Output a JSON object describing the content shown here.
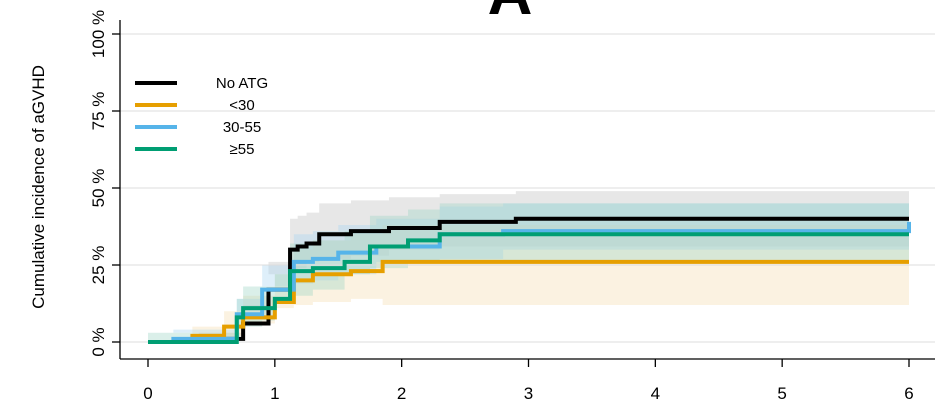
{
  "chart_data": {
    "type": "line",
    "panel_label": "A",
    "xlabel": "",
    "ylabel": "Cumulative incidence of aGVHD",
    "xlim": [
      0,
      6
    ],
    "ylim": [
      0,
      100
    ],
    "x_ticks": [
      "0",
      "1",
      "2",
      "3",
      "4",
      "5",
      "6"
    ],
    "y_ticks": [
      "0 %",
      "25 %",
      "50 %",
      "75 %",
      "100 %"
    ],
    "grid": "horizontal",
    "legend_position": "top-left",
    "series": [
      {
        "name": "No ATG",
        "color": "#000000",
        "band_color": "#bfbfbf",
        "x": [
          0,
          0.4,
          0.7,
          0.75,
          0.95,
          1.12,
          1.18,
          1.25,
          1.35,
          1.6,
          1.9,
          2.3,
          2.9,
          6
        ],
        "y": [
          0,
          1,
          1,
          6,
          17,
          30,
          31,
          32,
          35,
          36,
          37,
          39,
          40,
          40
        ],
        "lower": [
          0,
          0,
          0,
          2,
          10,
          22,
          23,
          24,
          26,
          27,
          28,
          30,
          31,
          31
        ],
        "upper": [
          0,
          3,
          3,
          12,
          26,
          40,
          41,
          42,
          45,
          46,
          47,
          48,
          49,
          49
        ]
      },
      {
        "name": "<30",
        "color": "#E69F00",
        "band_color": "#f5dcb0",
        "x": [
          0,
          0.35,
          0.6,
          0.75,
          1.0,
          1.15,
          1.3,
          1.6,
          1.85,
          6
        ],
        "y": [
          0,
          2,
          5,
          8,
          13,
          20,
          22,
          23,
          26,
          26
        ],
        "lower": [
          0,
          0,
          1,
          2,
          6,
          11,
          12,
          13,
          14,
          12
        ],
        "upper": [
          0,
          5,
          10,
          15,
          22,
          30,
          33,
          35,
          38,
          38
        ]
      },
      {
        "name": "30-55",
        "color": "#56B4E9",
        "band_color": "#a7d6f1",
        "x": [
          0,
          0.2,
          0.7,
          0.9,
          1.15,
          1.3,
          1.5,
          1.8,
          2.3,
          2.8,
          6
        ],
        "y": [
          0,
          1,
          9,
          17,
          26,
          27,
          29,
          31,
          35,
          36,
          39
        ],
        "lower": [
          0,
          0,
          4,
          10,
          18,
          19,
          20,
          22,
          26,
          27,
          30
        ],
        "upper": [
          0,
          3,
          14,
          25,
          35,
          36,
          38,
          40,
          44,
          45,
          48
        ]
      },
      {
        "name": "≥55",
        "color": "#009E73",
        "band_color": "#9fd5c5",
        "x": [
          0,
          0.7,
          0.75,
          0.9,
          1.0,
          1.12,
          1.3,
          1.55,
          1.75,
          2.05,
          2.3,
          6
        ],
        "y": [
          0,
          8,
          11,
          11,
          14,
          23,
          24,
          26,
          31,
          33,
          35,
          35
        ],
        "lower": [
          0,
          3,
          5,
          5,
          7,
          14,
          15,
          17,
          22,
          24,
          26,
          26
        ],
        "upper": [
          0,
          14,
          18,
          18,
          22,
          32,
          33,
          36,
          41,
          43,
          45,
          45
        ]
      }
    ]
  }
}
